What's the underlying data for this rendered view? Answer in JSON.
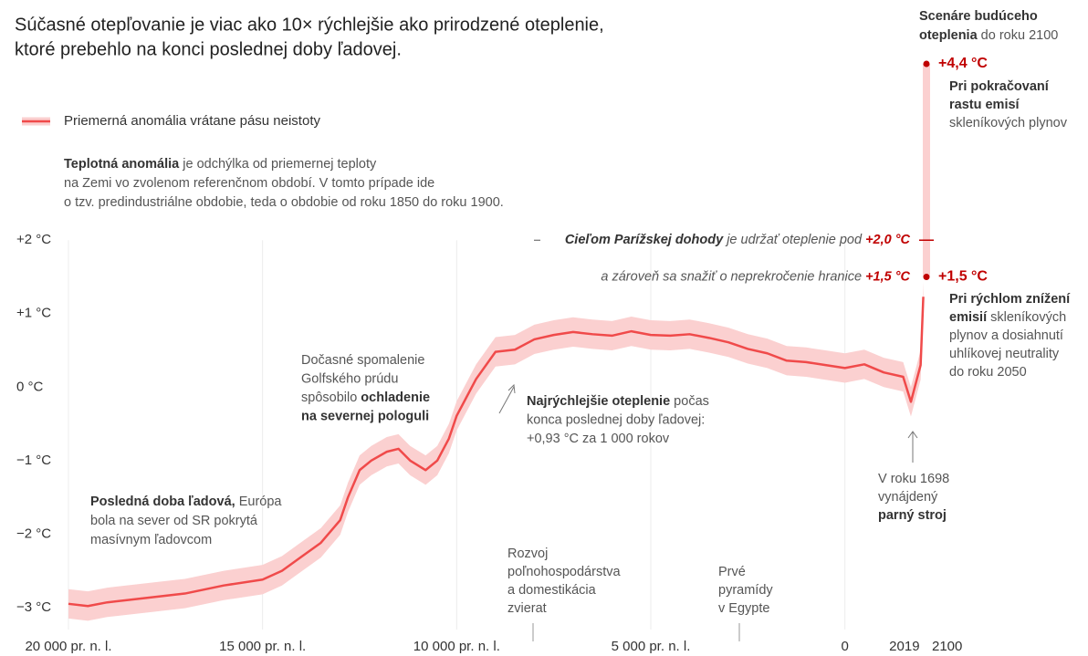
{
  "chart_data": {
    "type": "line",
    "title": [
      "Súčasné otepľovanie je viac ako 10× rýchlejšie ako prirodzené oteplenie,",
      "ktoré prebehlo na konci poslednej doby ľadovej."
    ],
    "x": [
      -20000,
      -19500,
      -19000,
      -18000,
      -17000,
      -16000,
      -15000,
      -14500,
      -14000,
      -13500,
      -13000,
      -12800,
      -12500,
      -12200,
      -11800,
      -11500,
      -11200,
      -10800,
      -10500,
      -10200,
      -10000,
      -9500,
      -9000,
      -8500,
      -8000,
      -7500,
      -7000,
      -6500,
      -6000,
      -5500,
      -5000,
      -4500,
      -4000,
      -3500,
      -3000,
      -2500,
      -2000,
      -1500,
      -1000,
      -500,
      0,
      500,
      1000,
      1500,
      1700,
      1850,
      1950,
      2019
    ],
    "series": [
      {
        "name": "Priemerná anomália vrátane pásu neistoty",
        "color": "#f04a4a",
        "band_color": "#fbd0d0",
        "uncertainty": 0.2,
        "values": [
          -2.95,
          -2.98,
          -2.93,
          -2.87,
          -2.81,
          -2.7,
          -2.62,
          -2.5,
          -2.31,
          -2.12,
          -1.81,
          -1.5,
          -1.13,
          -1.0,
          -0.88,
          -0.84,
          -1.0,
          -1.13,
          -1.0,
          -0.7,
          -0.39,
          0.11,
          0.48,
          0.51,
          0.65,
          0.71,
          0.75,
          0.72,
          0.7,
          0.76,
          0.71,
          0.7,
          0.72,
          0.67,
          0.61,
          0.52,
          0.46,
          0.36,
          0.34,
          0.3,
          0.26,
          0.31,
          0.2,
          0.14,
          -0.2,
          0.1,
          0.3,
          1.23
        ]
      }
    ],
    "xlim": [
      -20000,
      2100
    ],
    "xticks": [
      {
        "value": -20000,
        "label": "20 000 pr. n. l."
      },
      {
        "value": -15000,
        "label": "15 000 pr. n. l."
      },
      {
        "value": -10000,
        "label": "10 000 pr. n. l."
      },
      {
        "value": -5000,
        "label": "5 000 pr. n. l."
      },
      0,
      2019,
      2100
    ],
    "ylim": [
      -3.3,
      4.4
    ],
    "yticks": [
      {
        "value": 2,
        "label": "+2 °C"
      },
      {
        "value": 1,
        "label": "+1 °C"
      },
      {
        "value": 0,
        "label": "0 °C"
      },
      {
        "value": -1,
        "label": "−1 °C"
      },
      {
        "value": -2,
        "label": "−2 °C"
      },
      {
        "value": -3,
        "label": "−3 °C"
      }
    ],
    "grid": true,
    "scenarios": [
      {
        "value": 4.4,
        "label": "+4,4 °C"
      },
      {
        "value": 1.5,
        "label": "+1,5 °C"
      }
    ],
    "targets": [
      {
        "value": 2.0,
        "label": "+2,0 °C",
        "lines": [
          [
            {
              "text": "Cieľom Parížskej dohody",
              "bold": true
            },
            {
              "text": " je udržať oteplenie pod "
            }
          ]
        ]
      },
      {
        "value": 1.5,
        "label": "+1,5 °C",
        "lines": [
          [
            {
              "text": "a zároveň sa snažiť o neprekročenie hranice "
            }
          ]
        ]
      }
    ],
    "annotations": [
      {
        "lines": [
          [
            {
              "text": "Teplotná anomália",
              "bold": true
            },
            {
              "text": " je odchýlka od priemernej teploty"
            }
          ],
          [
            {
              "text": "na Zemi vo zvolenom referenčnom období. V tomto prípade ide"
            }
          ],
          [
            {
              "text": "o tzv. predindustriálne obdobie, teda o obdobie od roku 1850 do roku 1900."
            }
          ]
        ]
      },
      {
        "lines": [
          [
            {
              "text": "Posledná doba ľadová,",
              "bold": true
            },
            {
              "text": " Európa"
            }
          ],
          [
            {
              "text": "bola na sever od SR pokrytá"
            }
          ],
          [
            {
              "text": "masívnym ľadovcom"
            }
          ]
        ]
      },
      {
        "lines": [
          [
            {
              "text": "Dočasné spomalenie"
            }
          ],
          [
            {
              "text": "Golfského prúdu"
            }
          ],
          [
            {
              "text": "spôsobilo "
            },
            {
              "text": "ochladenie",
              "bold": true
            }
          ],
          [
            {
              "text": "na severnej pologuli",
              "bold": true
            }
          ]
        ]
      },
      {
        "lines": [
          [
            {
              "text": "Najrýchlejšie oteplenie",
              "bold": true
            },
            {
              "text": " počas"
            }
          ],
          [
            {
              "text": "konca poslednej doby ľadovej:"
            }
          ],
          [
            {
              "text": "+0,93 °C za 1 000 rokov"
            }
          ]
        ]
      },
      {
        "lines": [
          [
            {
              "text": "Rozvoj"
            }
          ],
          [
            {
              "text": "poľnohospodárstva"
            }
          ],
          [
            {
              "text": "a domestikácia"
            }
          ],
          [
            {
              "text": "zvierat"
            }
          ]
        ]
      },
      {
        "lines": [
          [
            {
              "text": "Prvé"
            }
          ],
          [
            {
              "text": "pyramídy"
            }
          ],
          [
            {
              "text": "v Egypte"
            }
          ]
        ]
      },
      {
        "lines": [
          [
            {
              "text": "V roku 1698"
            }
          ],
          [
            {
              "text": "vynájdený"
            }
          ],
          [
            {
              "text": "parný stroj",
              "bold": true
            }
          ]
        ]
      },
      {
        "lines": [
          [
            {
              "text": "Scenáre budúceho",
              "bold": true
            }
          ],
          [
            {
              "text": "oteplenia",
              "bold": true
            },
            {
              "text": " do roku 2100"
            }
          ]
        ]
      },
      {
        "lines": [
          [
            {
              "text": "Pri pokračovaní",
              "bold": true
            }
          ],
          [
            {
              "text": "rastu emisí",
              "bold": true
            }
          ],
          [
            {
              "text": "skleníkových plynov"
            }
          ]
        ]
      },
      {
        "lines": [
          [
            {
              "text": "Pri rýchlom znížení",
              "bold": true
            }
          ],
          [
            {
              "text": "emisií",
              "bold": true
            },
            {
              "text": " skleníkových"
            }
          ],
          [
            {
              "text": "plynov a dosiahnutí"
            }
          ],
          [
            {
              "text": "uhlíkovej neutrality"
            }
          ],
          [
            {
              "text": "do roku 2050"
            }
          ]
        ]
      }
    ]
  }
}
